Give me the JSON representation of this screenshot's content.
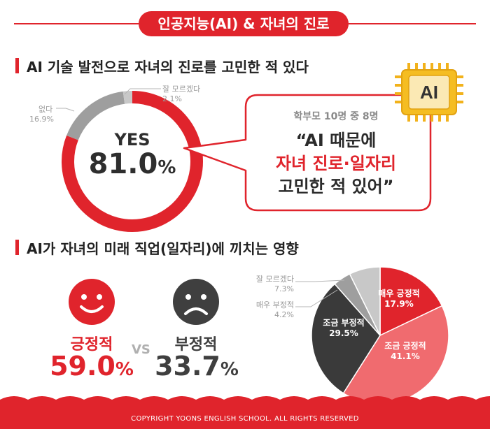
{
  "header": {
    "title": "인공지능(AI) & 자녀의 진로"
  },
  "section1": {
    "title": "AI 기술 발전으로 자녀의 진로를 고민한 적 있다",
    "yes_label": "YES",
    "yes_value": "81.0",
    "yes_unit": "%",
    "no_label": "없다",
    "no_value": "16.9%",
    "dk_label": "잘 모르겠다",
    "dk_value": "2.1%"
  },
  "bubble": {
    "sub": "학부모 10명 중 8명",
    "line1": "“AI 때문에",
    "line2": "자녀 진로·일자리",
    "line3": "고민한 적 있어”"
  },
  "chip": {
    "label": "AI"
  },
  "section2": {
    "title": "AI가 자녀의 미래 직업(일자리)에 끼치는 영향",
    "positive_label": "긍정적",
    "positive_value": "59.0",
    "positive_unit": "%",
    "negative_label": "부정적",
    "negative_value": "33.7",
    "negative_unit": "%",
    "vs": "VS"
  },
  "footer": {
    "text": "COPYRIGHT YOONS ENGLISH SCHOOL. ALL RIGHTS RESERVED"
  },
  "colors": {
    "accent": "#e0242c",
    "light_red": "#f06b6f",
    "dark": "#3a3a3a",
    "gray": "#9e9e9e",
    "light_gray": "#c8c8c8"
  },
  "chart_data": [
    {
      "type": "pie",
      "title": "AI 기술 발전으로 자녀의 진로를 고민한 적 있다",
      "categories": [
        "YES",
        "없다",
        "잘 모르겠다"
      ],
      "values": [
        81.0,
        16.9,
        2.1
      ]
    },
    {
      "type": "pie",
      "title": "AI가 자녀의 미래 직업(일자리)에 끼치는 영향",
      "categories": [
        "매우 긍정적",
        "조금 긍정적",
        "조금 부정적",
        "매우 부정적",
        "잘 모르겠다"
      ],
      "values": [
        17.9,
        41.1,
        29.5,
        4.2,
        7.3
      ],
      "labels": [
        "매우 긍정적",
        "조금 긍정적",
        "조금 부정적",
        "매우 부정적",
        "잘 모르겠다"
      ],
      "value_labels": [
        "17.9%",
        "41.1%",
        "29.5%",
        "4.2%",
        "7.3%"
      ]
    }
  ]
}
